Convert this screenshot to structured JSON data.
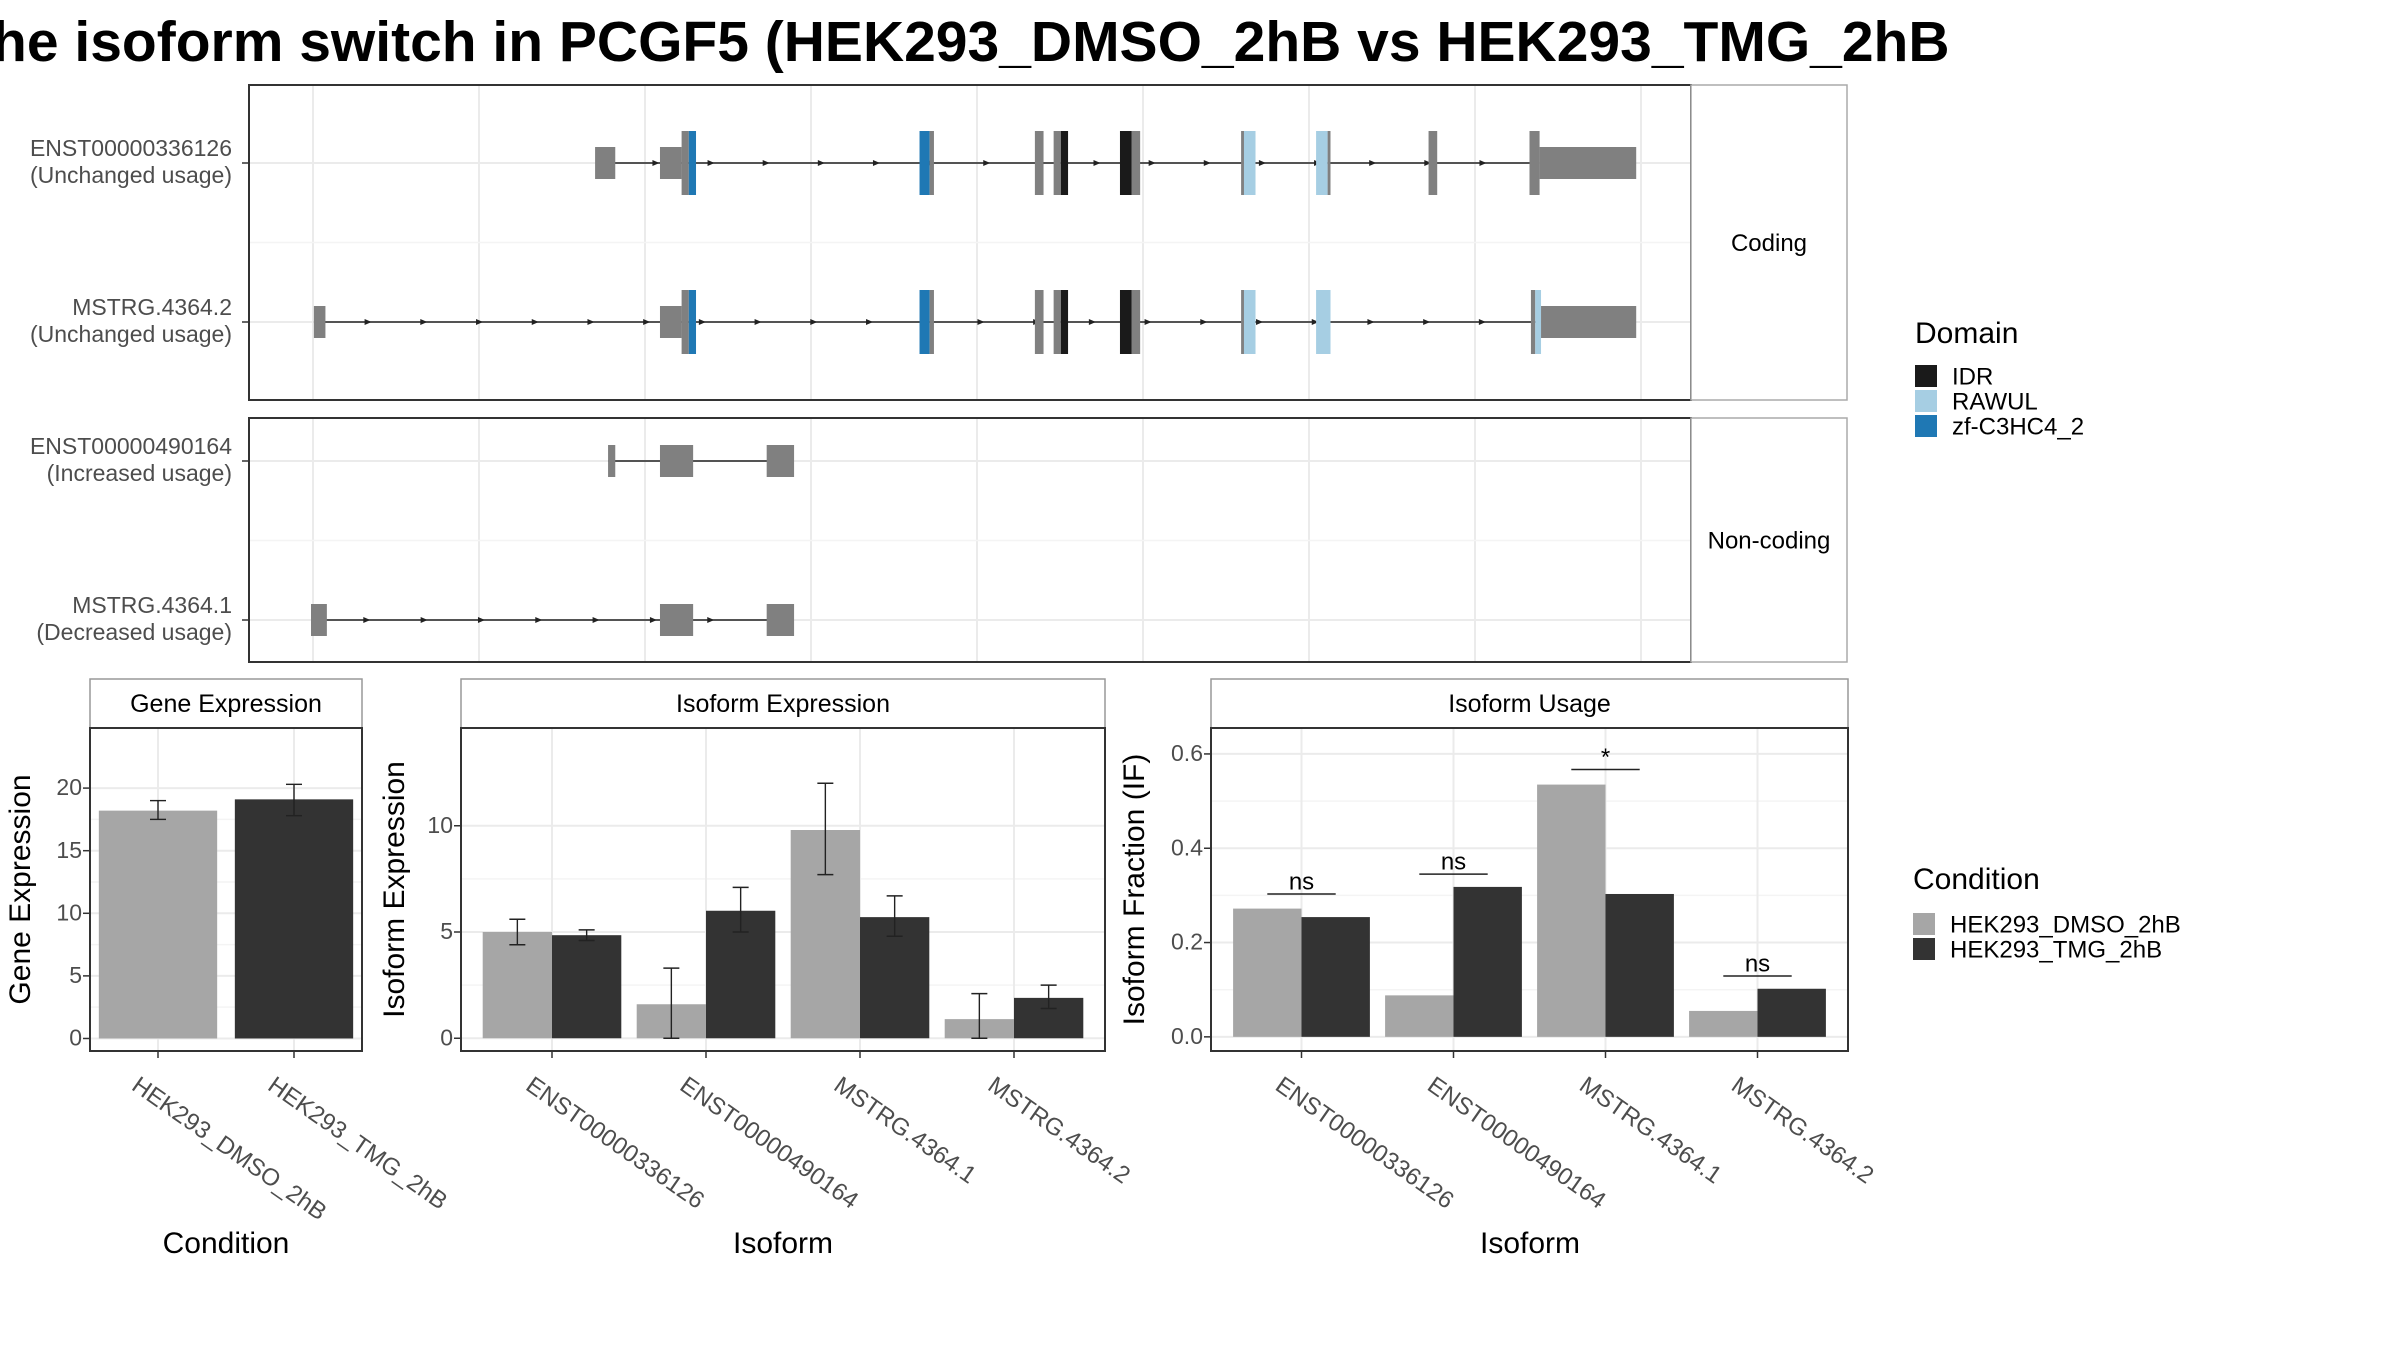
{
  "title": "he isoform switch in PCGF5 (HEK293_DMSO_2hB vs HEK293_TMG_2hB",
  "colors": {
    "dmso": "#a6a6a6",
    "tmg": "#333333",
    "exon": "#808080",
    "idr": "#1a1a1a",
    "rawul": "#a6cee3",
    "zf": "#1f78b4",
    "panel_border": "#333333",
    "strip_fill": "#ffffff",
    "grid": "#ebebeb"
  },
  "transcripts": {
    "panels": [
      {
        "label": "Coding",
        "rows": [
          {
            "id": "ENST00000336126",
            "usage": "(Unchanged usage)",
            "intron": [
              0.245,
              0.895
            ],
            "exons": [
              {
                "s": 0.24,
                "e": 0.254,
                "t": "exon",
                "tall": false
              },
              {
                "s": 0.285,
                "e": 0.3,
                "t": "exon",
                "tall": false
              },
              {
                "s": 0.3,
                "e": 0.305,
                "t": "exon",
                "tall": true
              },
              {
                "s": 0.305,
                "e": 0.31,
                "t": "zf",
                "tall": true
              },
              {
                "s": 0.465,
                "e": 0.472,
                "t": "zf",
                "tall": true
              },
              {
                "s": 0.472,
                "e": 0.475,
                "t": "exon",
                "tall": true
              },
              {
                "s": 0.545,
                "e": 0.551,
                "t": "exon",
                "tall": true
              },
              {
                "s": 0.558,
                "e": 0.563,
                "t": "exon",
                "tall": true
              },
              {
                "s": 0.563,
                "e": 0.568,
                "t": "idr",
                "tall": true
              },
              {
                "s": 0.604,
                "e": 0.612,
                "t": "idr",
                "tall": true
              },
              {
                "s": 0.612,
                "e": 0.618,
                "t": "exon",
                "tall": true
              },
              {
                "s": 0.688,
                "e": 0.69,
                "t": "exon",
                "tall": true
              },
              {
                "s": 0.69,
                "e": 0.698,
                "t": "rawul",
                "tall": true
              },
              {
                "s": 0.74,
                "e": 0.748,
                "t": "rawul",
                "tall": true
              },
              {
                "s": 0.748,
                "e": 0.75,
                "t": "exon",
                "tall": true
              },
              {
                "s": 0.818,
                "e": 0.824,
                "t": "exon",
                "tall": true
              },
              {
                "s": 0.888,
                "e": 0.895,
                "t": "exon",
                "tall": true
              },
              {
                "s": 0.895,
                "e": 0.962,
                "t": "exon",
                "tall": false
              }
            ]
          },
          {
            "id": "MSTRG.4364.2",
            "usage": "(Unchanged usage)",
            "intron": [
              0.045,
              0.895
            ],
            "exons": [
              {
                "s": 0.045,
                "e": 0.053,
                "t": "exon",
                "tall": false
              },
              {
                "s": 0.285,
                "e": 0.3,
                "t": "exon",
                "tall": false
              },
              {
                "s": 0.3,
                "e": 0.305,
                "t": "exon",
                "tall": true
              },
              {
                "s": 0.305,
                "e": 0.31,
                "t": "zf",
                "tall": true
              },
              {
                "s": 0.465,
                "e": 0.472,
                "t": "zf",
                "tall": true
              },
              {
                "s": 0.472,
                "e": 0.475,
                "t": "exon",
                "tall": true
              },
              {
                "s": 0.545,
                "e": 0.551,
                "t": "exon",
                "tall": true
              },
              {
                "s": 0.558,
                "e": 0.563,
                "t": "exon",
                "tall": true
              },
              {
                "s": 0.563,
                "e": 0.568,
                "t": "idr",
                "tall": true
              },
              {
                "s": 0.604,
                "e": 0.612,
                "t": "idr",
                "tall": true
              },
              {
                "s": 0.612,
                "e": 0.618,
                "t": "exon",
                "tall": true
              },
              {
                "s": 0.688,
                "e": 0.69,
                "t": "exon",
                "tall": true
              },
              {
                "s": 0.69,
                "e": 0.698,
                "t": "rawul",
                "tall": true
              },
              {
                "s": 0.74,
                "e": 0.75,
                "t": "rawul",
                "tall": true
              },
              {
                "s": 0.889,
                "e": 0.892,
                "t": "exon",
                "tall": true
              },
              {
                "s": 0.892,
                "e": 0.896,
                "t": "rawul",
                "tall": true
              },
              {
                "s": 0.896,
                "e": 0.962,
                "t": "exon",
                "tall": false
              }
            ]
          }
        ]
      },
      {
        "label": "Non-coding",
        "rows": [
          {
            "id": "ENST00000490164",
            "usage": "(Increased usage)",
            "intron": [
              0.249,
              0.361
            ],
            "exons": [
              {
                "s": 0.249,
                "e": 0.254,
                "t": "exon",
                "tall": false
              },
              {
                "s": 0.285,
                "e": 0.308,
                "t": "exon",
                "tall": false
              },
              {
                "s": 0.359,
                "e": 0.378,
                "t": "exon",
                "tall": false
              }
            ]
          },
          {
            "id": "MSTRG.4364.1",
            "usage": "(Decreased usage)",
            "intron": [
              0.043,
              0.361
            ],
            "exons": [
              {
                "s": 0.043,
                "e": 0.054,
                "t": "exon",
                "tall": false
              },
              {
                "s": 0.285,
                "e": 0.308,
                "t": "exon",
                "tall": false
              },
              {
                "s": 0.359,
                "e": 0.378,
                "t": "exon",
                "tall": false
              }
            ]
          }
        ]
      }
    ]
  },
  "legend_domain": {
    "title": "Domain",
    "items": [
      {
        "label": "IDR",
        "color": "#1a1a1a"
      },
      {
        "label": "RAWUL",
        "color": "#a6cee3"
      },
      {
        "label": "zf-C3HC4_2",
        "color": "#1f78b4"
      }
    ]
  },
  "legend_condition": {
    "title": "Condition",
    "items": [
      {
        "label": "HEK293_DMSO_2hB",
        "color": "#a6a6a6"
      },
      {
        "label": "HEK293_TMG_2hB",
        "color": "#333333"
      }
    ]
  },
  "chart_data": [
    {
      "type": "bar",
      "title": "Gene Expression",
      "xlabel": "Condition",
      "ylabel": "Gene Expression",
      "categories": [
        "HEK293_DMSO_2hB",
        "HEK293_TMG_2hB"
      ],
      "values": [
        18.2,
        19.1
      ],
      "errors": [
        [
          17.5,
          19.0
        ],
        [
          17.8,
          20.3
        ]
      ],
      "colors": [
        "#a6a6a6",
        "#333333"
      ],
      "ylim": [
        -1.0,
        24.8
      ],
      "yticks": [
        0,
        5,
        10,
        15,
        20
      ],
      "grid": true
    },
    {
      "type": "bar",
      "title": "Isoform Expression",
      "xlabel": "Isoform",
      "ylabel": "Isoform Expression",
      "categories": [
        "ENST00000336126",
        "ENST00000490164",
        "MSTRG.4364.1",
        "MSTRG.4364.2"
      ],
      "series": [
        {
          "name": "HEK293_DMSO_2hB",
          "values": [
            5.0,
            1.6,
            9.8,
            0.9
          ],
          "errors": [
            [
              4.4,
              5.6
            ],
            [
              0.0,
              3.3
            ],
            [
              7.7,
              12.0
            ],
            [
              0.0,
              2.1
            ]
          ]
        },
        {
          "name": "HEK293_TMG_2hB",
          "values": [
            4.85,
            6.0,
            5.7,
            1.9
          ],
          "errors": [
            [
              4.6,
              5.1
            ],
            [
              5.0,
              7.1
            ],
            [
              4.8,
              6.7
            ],
            [
              1.4,
              2.5
            ]
          ]
        }
      ],
      "ylim": [
        -0.6,
        14.6
      ],
      "yticks": [
        0,
        5,
        10
      ],
      "grid": true
    },
    {
      "type": "bar",
      "title": "Isoform Usage",
      "xlabel": "Isoform",
      "ylabel": "Isoform Fraction (IF)",
      "categories": [
        "ENST00000336126",
        "ENST00000490164",
        "MSTRG.4364.1",
        "MSTRG.4364.2"
      ],
      "series": [
        {
          "name": "HEK293_DMSO_2hB",
          "values": [
            0.272,
            0.088,
            0.535,
            0.055
          ]
        },
        {
          "name": "HEK293_TMG_2hB",
          "values": [
            0.254,
            0.318,
            0.303,
            0.102
          ]
        }
      ],
      "annotations": [
        {
          "category": "ENST00000336126",
          "text": "ns",
          "y": 0.303
        },
        {
          "category": "ENST00000490164",
          "text": "ns",
          "y": 0.345
        },
        {
          "category": "MSTRG.4364.1",
          "text": "*",
          "y": 0.567
        },
        {
          "category": "MSTRG.4364.2",
          "text": "ns",
          "y": 0.129
        }
      ],
      "ylim": [
        -0.03,
        0.655
      ],
      "yticks": [
        "0.0",
        "0.2",
        "0.4",
        "0.6"
      ],
      "grid": true
    }
  ]
}
